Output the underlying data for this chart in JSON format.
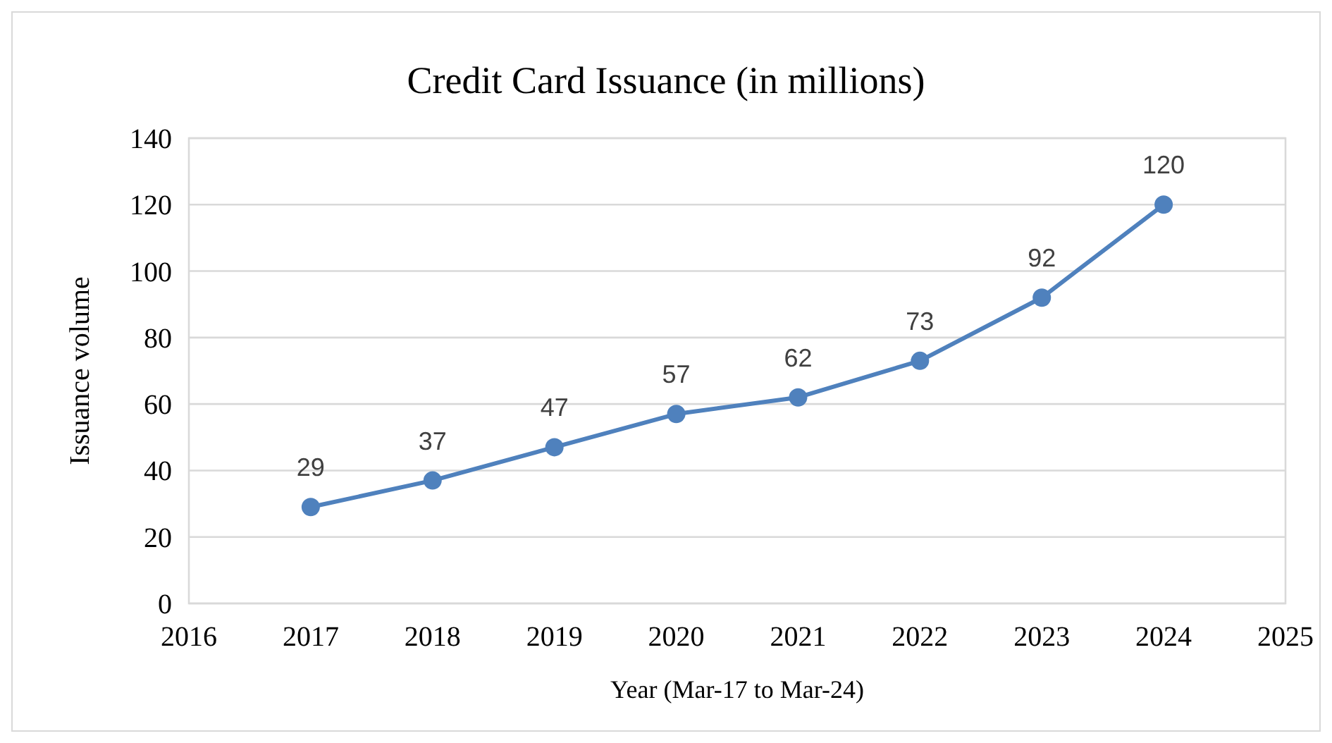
{
  "chart_data": {
    "type": "line",
    "title": "Credit Card Issuance (in millions)",
    "xlabel": "Year (Mar-17 to Mar-24)",
    "ylabel": "Issuance volume",
    "x": [
      2017,
      2018,
      2019,
      2020,
      2021,
      2022,
      2023,
      2024
    ],
    "series": [
      {
        "color": "#4f81bd",
        "values": [
          29,
          37,
          47,
          57,
          62,
          73,
          92,
          120
        ]
      }
    ],
    "xlim": [
      2016,
      2025
    ],
    "xticks": [
      2016,
      2017,
      2018,
      2019,
      2020,
      2021,
      2022,
      2023,
      2024,
      2025
    ],
    "ylim": [
      0,
      140
    ],
    "yticks": [
      0,
      20,
      40,
      60,
      80,
      100,
      120,
      140
    ],
    "grid": "y",
    "marker": "circle",
    "line_style": "solid",
    "data_labels": true
  }
}
